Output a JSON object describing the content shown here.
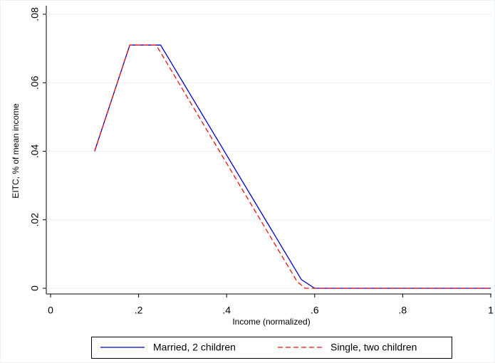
{
  "chart_data": {
    "type": "line",
    "xlabel": "Income (normalized)",
    "ylabel": "EITC, % of mean income",
    "series": [
      {
        "name": "Married, 2 children",
        "color": "#0000cc",
        "dash": "solid",
        "x": [
          0.1,
          0.18,
          0.25,
          0.57,
          0.6,
          1
        ],
        "values": [
          0.04,
          0.071,
          0.071,
          0.0025,
          0,
          0
        ]
      },
      {
        "name": "Single, two children",
        "color": "#ee1111",
        "dash": "dashed",
        "x": [
          0.1,
          0.18,
          0.24,
          0.56,
          0.578,
          1
        ],
        "values": [
          0.04,
          0.071,
          0.071,
          0.002,
          0,
          0
        ]
      }
    ],
    "xlim": [
      0,
      1
    ],
    "xticks": [
      0,
      {
        "value": 0.2,
        "label": ".2"
      },
      {
        "value": 0.4,
        "label": ".4"
      },
      {
        "value": 0.6,
        "label": ".6"
      },
      {
        "value": 0.8,
        "label": ".8"
      },
      1
    ],
    "ylim": [
      0,
      0.08
    ],
    "yticks": [
      0,
      {
        "value": 0.02,
        "label": ".02"
      },
      {
        "value": 0.04,
        "label": ".04"
      },
      {
        "value": 0.06,
        "label": ".06"
      },
      {
        "value": 0.08,
        "label": ".08"
      }
    ],
    "legend": "bottom"
  }
}
